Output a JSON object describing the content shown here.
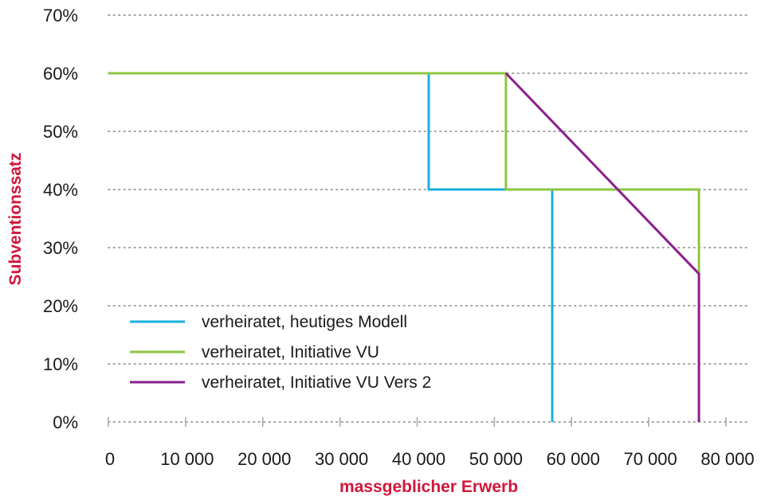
{
  "chart_data": {
    "type": "line",
    "xlabel": "massgeblicher Erwerb",
    "ylabel": "Subventionssatz",
    "xlim": [
      0,
      80000
    ],
    "ylim": [
      0,
      70
    ],
    "x_ticks": [
      0,
      10000,
      20000,
      30000,
      40000,
      50000,
      60000,
      70000,
      80000
    ],
    "x_tick_labels": [
      "0",
      "10 000",
      "20 000",
      "30 000",
      "40 000",
      "50 000",
      "60 000",
      "70 000",
      "80 000"
    ],
    "y_ticks": [
      0,
      10,
      20,
      30,
      40,
      50,
      60,
      70
    ],
    "y_tick_labels": [
      "0%",
      "10%",
      "20%",
      "30%",
      "40%",
      "50%",
      "60%",
      "70%"
    ],
    "grid": "horizontal dotted",
    "legend_position": "bottom-left",
    "series": [
      {
        "name": "verheiratet, heutiges Modell",
        "color": "#1ab0dd",
        "points": [
          [
            0,
            60
          ],
          [
            41500,
            60
          ],
          [
            41500,
            40
          ],
          [
            57500,
            40
          ],
          [
            57500,
            0
          ]
        ]
      },
      {
        "name": "verheiratet, Initiative VU",
        "color": "#8dc641",
        "points": [
          [
            0,
            60
          ],
          [
            51500,
            60
          ],
          [
            51500,
            40
          ],
          [
            76500,
            40
          ],
          [
            76500,
            25.5
          ]
        ]
      },
      {
        "name": "verheiratet, Initiative VU Vers 2",
        "color": "#8a1f8f",
        "points": [
          [
            51500,
            60
          ],
          [
            76500,
            25.5
          ],
          [
            76500,
            0
          ]
        ]
      }
    ]
  },
  "colors": {
    "grid": "#a6a6a6",
    "axis_title": "#d2163b",
    "tick_text": "#1a1a1a"
  }
}
